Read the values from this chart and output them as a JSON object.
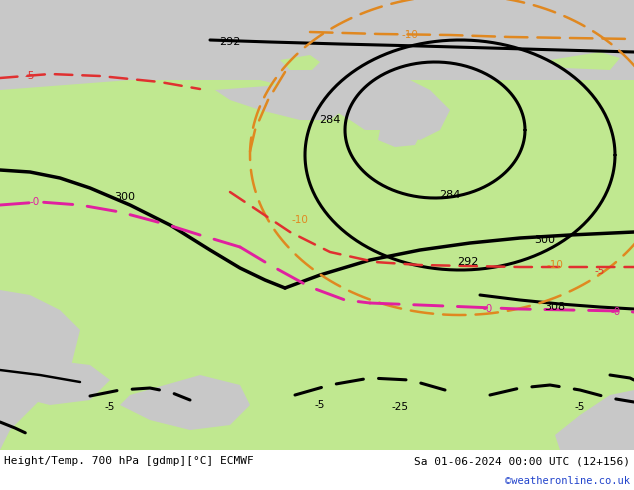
{
  "title_left": "Height/Temp. 700 hPa [gdmp][°C] ECMWF",
  "title_right": "Sa 01-06-2024 00:00 UTC (12+156)",
  "watermark": "©weatheronline.co.uk",
  "gray": "#c8c8c8",
  "green": "#c0e890",
  "orange": "#e08820",
  "red": "#e03030",
  "magenta": "#e020a0",
  "fig_width": 6.34,
  "fig_height": 4.9,
  "dpi": 100
}
